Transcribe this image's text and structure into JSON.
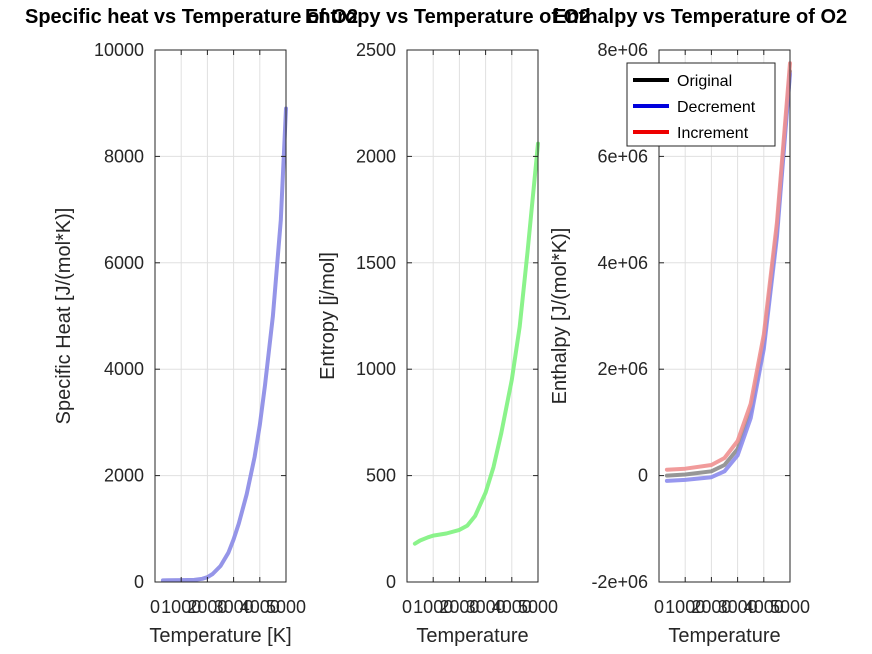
{
  "chart_data": [
    {
      "type": "line",
      "title": "Specific heat vs Temperature of O2",
      "xlabel": "Temperature [K]",
      "ylabel": "Specific Heat [J/(mol*K)]",
      "xlim": [
        0,
        5000
      ],
      "ylim": [
        0,
        10000
      ],
      "xticks": [
        0,
        1000,
        2000,
        3000,
        4000,
        5000
      ],
      "xtick_labels": [
        "0",
        "1000",
        "2000",
        "3000",
        "4000",
        "5000"
      ],
      "yticks": [
        0,
        2000,
        4000,
        6000,
        8000,
        10000
      ],
      "ytick_labels": [
        "0",
        "2000",
        "4000",
        "6000",
        "8000",
        "10000"
      ],
      "grid": true,
      "series": [
        {
          "color": "#8a8ae6",
          "x": [
            300,
            500,
            1000,
            1500,
            1800,
            2000,
            2200,
            2500,
            2800,
            3000,
            3200,
            3500,
            3800,
            4000,
            4200,
            4500,
            4800,
            5000
          ],
          "y": [
            30,
            32,
            35,
            40,
            60,
            90,
            150,
            300,
            550,
            800,
            1100,
            1650,
            2350,
            2950,
            3700,
            5000,
            6800,
            8900
          ]
        }
      ]
    },
    {
      "type": "line",
      "title": "Entropy vs Temperature of O2",
      "xlabel": "Temperature",
      "ylabel": "Entropy [j/mol]",
      "xlim": [
        0,
        5000
      ],
      "ylim": [
        0,
        2500
      ],
      "xticks": [
        0,
        1000,
        2000,
        3000,
        4000,
        5000
      ],
      "xtick_labels": [
        "0",
        "1000",
        "2000",
        "3000",
        "4000",
        "5000"
      ],
      "yticks": [
        0,
        500,
        1000,
        1500,
        2000,
        2500
      ],
      "ytick_labels": [
        "0",
        "500",
        "1000",
        "1500",
        "2000",
        "2500"
      ],
      "grid": true,
      "series": [
        {
          "color": "#7ef27e",
          "x": [
            300,
            500,
            800,
            1000,
            1500,
            2000,
            2300,
            2600,
            3000,
            3300,
            3600,
            4000,
            4300,
            4600,
            5000
          ],
          "y": [
            180,
            195,
            210,
            218,
            228,
            245,
            265,
            310,
            420,
            540,
            700,
            950,
            1200,
            1550,
            2060
          ]
        }
      ]
    },
    {
      "type": "line",
      "title": "Enthalpy vs Temperature of O2",
      "xlabel": "Temperature",
      "ylabel": "Enthalpy [J/(mol*K)]",
      "xlim": [
        0,
        5000
      ],
      "ylim": [
        -2000000,
        8000000
      ],
      "xticks": [
        0,
        1000,
        2000,
        3000,
        4000,
        5000
      ],
      "xtick_labels": [
        "0",
        "1000",
        "2000",
        "3000",
        "4000",
        "5000"
      ],
      "yticks": [
        -2000000,
        0,
        2000000,
        4000000,
        6000000,
        8000000
      ],
      "ytick_labels": [
        "-2e+06",
        "0",
        "2e+06",
        "4e+06",
        "6e+06",
        "8e+06"
      ],
      "grid": true,
      "legend": {
        "position": "top-right",
        "colors": [
          "#000000",
          "#0000dd",
          "#ee0000"
        ]
      },
      "series": [
        {
          "name": "Original",
          "color": "#8c8c8c",
          "x": [
            300,
            1000,
            2000,
            2500,
            3000,
            3500,
            4000,
            4500,
            5000
          ],
          "y": [
            0,
            20000,
            80000,
            200000,
            500000,
            1200000,
            2500000,
            4600000,
            7600000
          ]
        },
        {
          "name": "Decrement",
          "color": "#8c8ced",
          "x": [
            300,
            1000,
            2000,
            2500,
            3000,
            3500,
            4000,
            4500,
            5000
          ],
          "y": [
            -100000,
            -80000,
            -30000,
            80000,
            380000,
            1080000,
            2380000,
            4480000,
            7550000
          ]
        },
        {
          "name": "Increment",
          "color": "#f09090",
          "x": [
            300,
            1000,
            2000,
            2500,
            3000,
            3500,
            4000,
            4500,
            5000
          ],
          "y": [
            110000,
            130000,
            200000,
            330000,
            650000,
            1350000,
            2650000,
            4750000,
            7750000
          ]
        }
      ]
    }
  ]
}
